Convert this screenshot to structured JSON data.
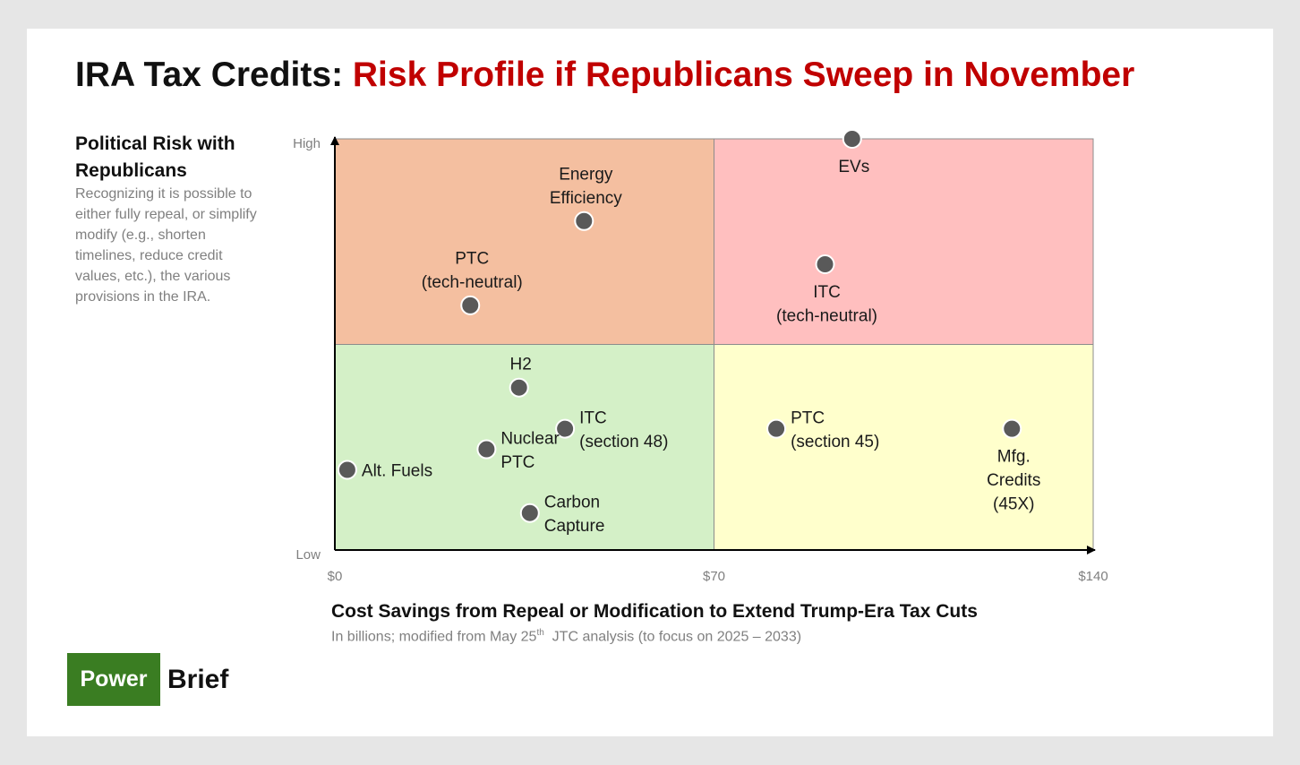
{
  "title": {
    "part1": "IRA Tax Credits: ",
    "part2": "Risk Profile if Republicans Sweep in November"
  },
  "y_axis": {
    "title": "Political Risk with Republicans",
    "note": "Recognizing it is possible to either fully repeal, or simplify modify (e.g., shorten timelines, reduce credit values, etc.), the various provisions in the IRA."
  },
  "x_axis": {
    "title": "Cost Savings from Repeal or Modification to Extend Trump-Era Tax Cuts",
    "note_before": "In billions; modified from May 25",
    "note_sup": "th",
    "note_after": "  JTC analysis (to focus on 2025 – 2033)"
  },
  "brand": {
    "box": "Power",
    "word": "Brief"
  },
  "colors": {
    "title_accent": "#c00000",
    "quadrant_top_left": "#f4bfa0",
    "quadrant_top_right": "#ffbfbf",
    "quadrant_bottom_left": "#d4f0c7",
    "quadrant_bottom_right": "#ffffcc",
    "point": "#595959",
    "brand_green": "#3a7d22"
  },
  "chart_data": {
    "type": "scatter",
    "title": "IRA Tax Credits: Risk Profile if Republicans Sweep in November",
    "xlabel": "Cost Savings from Repeal or Modification to Extend Trump-Era Tax Cuts",
    "ylabel": "Political Risk with Republicans",
    "xlim": [
      0,
      140
    ],
    "ylim": [
      0,
      100
    ],
    "x_ticks": [
      {
        "value": 0,
        "label": "$0"
      },
      {
        "value": 70,
        "label": "$70"
      },
      {
        "value": 140,
        "label": "$140"
      }
    ],
    "y_ticks": [
      {
        "value": 0,
        "label": "Low"
      },
      {
        "value": 100,
        "label": "High"
      }
    ],
    "quadrant_split": {
      "x": 70,
      "y": 50
    },
    "points": [
      {
        "id": "evs",
        "lines": [
          "EVs"
        ],
        "x": 95.5,
        "y": 100,
        "label_pos": "below"
      },
      {
        "id": "energy-efficiency",
        "lines": [
          "Energy",
          "Efficiency"
        ],
        "x": 46,
        "y": 80,
        "label_pos": "above"
      },
      {
        "id": "ptc-tech-neutral",
        "lines": [
          "PTC",
          "(tech-neutral)"
        ],
        "x": 25,
        "y": 59.5,
        "label_pos": "above"
      },
      {
        "id": "itc-tech-neutral",
        "lines": [
          "ITC",
          "(tech-neutral)"
        ],
        "x": 90.5,
        "y": 69.5,
        "label_pos": "below"
      },
      {
        "id": "h2",
        "lines": [
          "H2"
        ],
        "x": 34,
        "y": 39.5,
        "label_pos": "above"
      },
      {
        "id": "itc-section-48",
        "lines": [
          "ITC",
          "(section 48)"
        ],
        "x": 42.5,
        "y": 29.5,
        "label_pos": "right"
      },
      {
        "id": "nuclear-ptc",
        "lines": [
          "Nuclear",
          "PTC"
        ],
        "x": 28,
        "y": 24.5,
        "label_pos": "right"
      },
      {
        "id": "alt-fuels",
        "lines": [
          "Alt. Fuels"
        ],
        "x": 2.3,
        "y": 19.5,
        "label_pos": "right"
      },
      {
        "id": "carbon-capture",
        "lines": [
          "Carbon",
          "Capture"
        ],
        "x": 36,
        "y": 9,
        "label_pos": "right"
      },
      {
        "id": "ptc-section-45",
        "lines": [
          "PTC",
          "(section 45)"
        ],
        "x": 81.5,
        "y": 29.5,
        "label_pos": "right"
      },
      {
        "id": "mfg-credits",
        "lines": [
          "Mfg.",
          "Credits",
          "(45X)"
        ],
        "x": 125,
        "y": 29.5,
        "label_pos": "below"
      }
    ]
  }
}
